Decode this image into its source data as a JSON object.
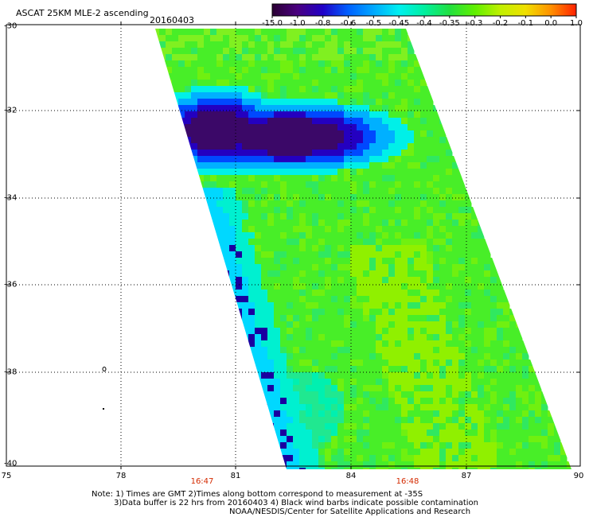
{
  "header": {
    "title": "ASCAT 25KM MLE-2 ascending",
    "date": "20160403"
  },
  "colorbar": {
    "labels": [
      "-15.0",
      "-1.0",
      "-0.8",
      "-0.6",
      "-0.5",
      "-0.45",
      "-0.4",
      "-0.35",
      "-0.3",
      "-0.2",
      "-0.1",
      "0.0",
      "1.0"
    ],
    "colors": [
      "#2a0033",
      "#4a0080",
      "#2000c8",
      "#0060ff",
      "#00a8ff",
      "#00f0f0",
      "#00f0a0",
      "#20e040",
      "#60f000",
      "#c0f000",
      "#f0e000",
      "#ff9000",
      "#ff2000"
    ]
  },
  "map": {
    "x_ticks": [
      "75",
      "78",
      "81",
      "84",
      "87",
      "90"
    ],
    "y_ticks": [
      "-30",
      "-32",
      "-34",
      "-36",
      "-38",
      "-40"
    ],
    "times": [
      "16:47",
      "16:48"
    ]
  },
  "notes": {
    "line1": "Note: 1) Times are GMT 2)Times along bottom correspond to measurement at -35S",
    "line2": "3)Data buffer is 22 hrs from 20160403 4) Black wind barbs indicate possible contamination",
    "line3": "NOAA/NESDIS/Center for Satellite Applications and Research"
  }
}
